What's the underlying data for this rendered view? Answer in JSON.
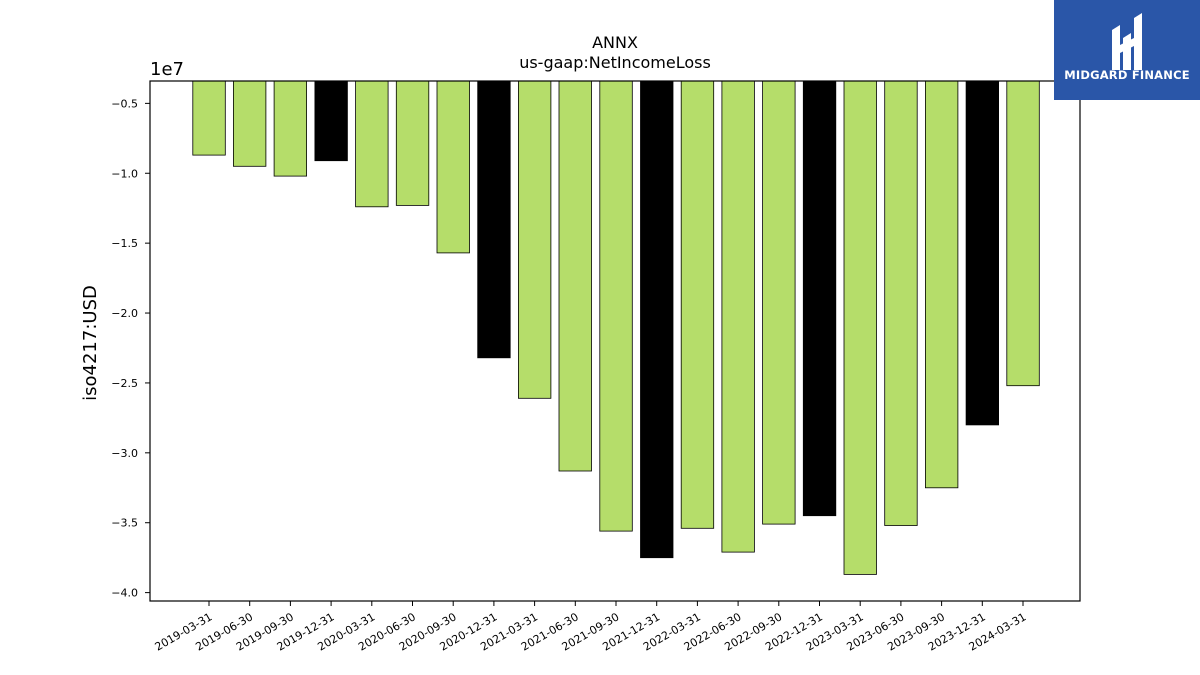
{
  "brand": {
    "name": "MIDGARD FINANCE",
    "bg_color": "#2a56a8",
    "fg_color": "#ffffff"
  },
  "chart_data": {
    "type": "bar",
    "title": "ANNX",
    "subtitle": "us-gaap:NetIncomeLoss",
    "ylabel": "iso4217:USD",
    "xlabel": "",
    "offset_label": "1e7",
    "scale": 10000000,
    "ylim": [
      -4.06,
      -0.34
    ],
    "yticks": [
      -0.5,
      -1.0,
      -1.5,
      -2.0,
      -2.5,
      -3.0,
      -3.5,
      -4.0
    ],
    "ytick_labels": [
      "−0.5",
      "−1.0",
      "−1.5",
      "−2.0",
      "−2.5",
      "−3.0",
      "−3.5",
      "−4.0"
    ],
    "grid": false,
    "colors": {
      "quarter": "#b5dd6a",
      "year_end": "#000000",
      "edge": "#000000"
    },
    "categories": [
      "2019-03-31",
      "2019-06-30",
      "2019-09-30",
      "2019-12-31",
      "2020-03-31",
      "2020-06-30",
      "2020-09-30",
      "2020-12-31",
      "2021-03-31",
      "2021-06-30",
      "2021-09-30",
      "2021-12-31",
      "2022-03-31",
      "2022-06-30",
      "2022-09-30",
      "2022-12-31",
      "2023-03-31",
      "2023-06-30",
      "2023-09-30",
      "2023-12-31",
      "2024-03-31"
    ],
    "values": [
      -0.87,
      -0.95,
      -1.02,
      -0.91,
      -1.24,
      -1.23,
      -1.57,
      -2.32,
      -2.61,
      -3.13,
      -3.56,
      -3.75,
      -3.54,
      -3.71,
      -3.51,
      -3.45,
      -3.87,
      -3.52,
      -3.25,
      -2.8,
      -2.52
    ],
    "highlight": [
      false,
      false,
      false,
      true,
      false,
      false,
      false,
      true,
      false,
      false,
      false,
      true,
      false,
      false,
      false,
      true,
      false,
      false,
      false,
      true,
      false
    ]
  }
}
